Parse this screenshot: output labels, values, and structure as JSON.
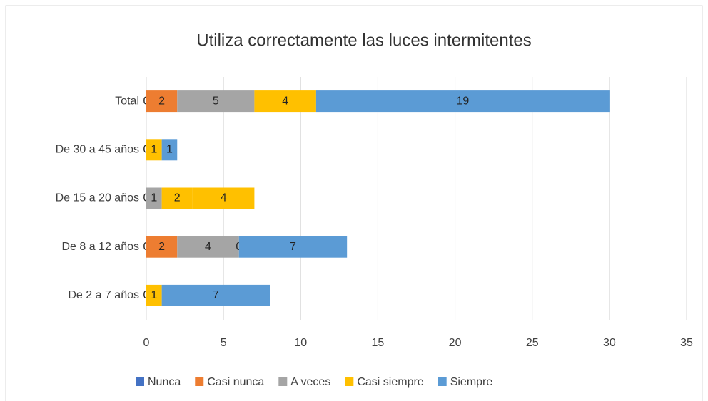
{
  "chart_data": {
    "type": "stacked-barh",
    "title": "Utiliza correctamente las luces intermitentes",
    "categories": [
      "Total",
      "De 30 a 45 años",
      "De 15 a 20 años",
      "De 8 a 12 años",
      "De 2 a 7 años"
    ],
    "series": [
      {
        "name": "Nunca",
        "color": "#4472c4",
        "values": [
          0,
          0,
          0,
          0,
          0
        ]
      },
      {
        "name": "Casi nunca",
        "color": "#ed7d31",
        "values": [
          2,
          null,
          null,
          2,
          null
        ]
      },
      {
        "name": "A veces",
        "color": "#a5a5a5",
        "values": [
          5,
          null,
          1,
          4,
          null
        ]
      },
      {
        "name": "Casi siempre",
        "color": "#ffc000",
        "values": [
          4,
          1,
          2,
          0,
          1
        ]
      },
      {
        "name": "Siempre",
        "color": "#5b9bd5",
        "values": [
          19,
          1,
          4,
          7,
          7
        ],
        "point_colors": [
          null,
          null,
          "#ffc000",
          null,
          null
        ]
      }
    ],
    "xlim": [
      0,
      35
    ],
    "xticks": [
      0,
      5,
      10,
      15,
      20,
      25,
      30,
      35
    ],
    "grid": true,
    "legend": "bottom"
  }
}
